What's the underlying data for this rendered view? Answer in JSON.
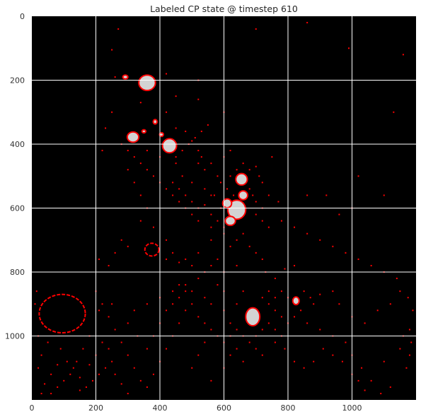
{
  "chart_data": {
    "type": "heatmap",
    "title": "Labeled CP state @ timestep 610",
    "xlabel": "",
    "ylabel": "",
    "xlim": [
      0,
      1200
    ],
    "ylim": [
      1200,
      0
    ],
    "x_ticks": [
      0,
      200,
      400,
      600,
      800,
      1000
    ],
    "y_ticks": [
      0,
      200,
      400,
      600,
      800,
      1000
    ],
    "x_tick_labels": [
      "0",
      "200",
      "400",
      "600",
      "800",
      "1000"
    ],
    "y_tick_labels": [
      "0",
      "200",
      "400",
      "600",
      "800",
      "1000"
    ],
    "grid": true,
    "colors": {
      "background": "#000000",
      "cell_fill": "#d3d3d3",
      "cell_outline": "#ff0000",
      "scatter": "#ff0000",
      "grid": "#ffffff"
    },
    "blobs": [
      {
        "x": 360,
        "y": 208,
        "rx": 26,
        "ry": 24
      },
      {
        "x": 292,
        "y": 190,
        "rx": 8,
        "ry": 6
      },
      {
        "x": 316,
        "y": 378,
        "rx": 18,
        "ry": 16
      },
      {
        "x": 350,
        "y": 360,
        "rx": 6,
        "ry": 5
      },
      {
        "x": 385,
        "y": 330,
        "rx": 6,
        "ry": 7
      },
      {
        "x": 405,
        "y": 370,
        "rx": 6,
        "ry": 6
      },
      {
        "x": 430,
        "y": 405,
        "rx": 22,
        "ry": 22
      },
      {
        "x": 655,
        "y": 510,
        "rx": 18,
        "ry": 18
      },
      {
        "x": 660,
        "y": 560,
        "rx": 14,
        "ry": 14
      },
      {
        "x": 640,
        "y": 605,
        "rx": 28,
        "ry": 30
      },
      {
        "x": 610,
        "y": 585,
        "rx": 14,
        "ry": 14
      },
      {
        "x": 620,
        "y": 640,
        "rx": 16,
        "ry": 14
      },
      {
        "x": 690,
        "y": 940,
        "rx": 22,
        "ry": 28
      },
      {
        "x": 825,
        "y": 890,
        "rx": 10,
        "ry": 12
      }
    ],
    "rings": [
      {
        "x": 95,
        "y": 930,
        "rx": 72,
        "ry": 60
      },
      {
        "x": 375,
        "y": 730,
        "rx": 22,
        "ry": 20
      }
    ],
    "scatter_points": [
      [
        260,
        190
      ],
      [
        250,
        105
      ],
      [
        270,
        40
      ],
      [
        340,
        270
      ],
      [
        420,
        300
      ],
      [
        450,
        350
      ],
      [
        480,
        360
      ],
      [
        500,
        390
      ],
      [
        520,
        420
      ],
      [
        530,
        440
      ],
      [
        520,
        460
      ],
      [
        540,
        480
      ],
      [
        560,
        460
      ],
      [
        580,
        500
      ],
      [
        590,
        520
      ],
      [
        520,
        260
      ],
      [
        600,
        440
      ],
      [
        620,
        420
      ],
      [
        640,
        480
      ],
      [
        700,
        470
      ],
      [
        710,
        500
      ],
      [
        720,
        520
      ],
      [
        690,
        560
      ],
      [
        700,
        620
      ],
      [
        720,
        640
      ],
      [
        770,
        580
      ],
      [
        750,
        440
      ],
      [
        860,
        560
      ],
      [
        920,
        560
      ],
      [
        960,
        620
      ],
      [
        1000,
        600
      ],
      [
        1020,
        500
      ],
      [
        1100,
        560
      ],
      [
        1130,
        300
      ],
      [
        1160,
        120
      ],
      [
        990,
        100
      ],
      [
        860,
        20
      ],
      [
        700,
        40
      ],
      [
        730,
        800
      ],
      [
        760,
        820
      ],
      [
        820,
        780
      ],
      [
        790,
        790
      ],
      [
        620,
        720
      ],
      [
        560,
        700
      ],
      [
        520,
        740
      ],
      [
        480,
        760
      ],
      [
        440,
        740
      ],
      [
        420,
        700
      ],
      [
        380,
        660
      ],
      [
        340,
        640
      ],
      [
        420,
        760
      ],
      [
        460,
        770
      ],
      [
        500,
        780
      ],
      [
        540,
        800
      ],
      [
        580,
        760
      ],
      [
        300,
        720
      ],
      [
        280,
        700
      ],
      [
        260,
        740
      ],
      [
        240,
        780
      ],
      [
        210,
        760
      ],
      [
        460,
        840
      ],
      [
        500,
        860
      ],
      [
        540,
        880
      ],
      [
        560,
        900
      ],
      [
        600,
        920
      ],
      [
        620,
        960
      ],
      [
        640,
        980
      ],
      [
        660,
        1000
      ],
      [
        540,
        1020
      ],
      [
        520,
        1060
      ],
      [
        500,
        1100
      ],
      [
        560,
        1140
      ],
      [
        600,
        1100
      ],
      [
        620,
        1060
      ],
      [
        660,
        1080
      ],
      [
        700,
        1040
      ],
      [
        720,
        1060
      ],
      [
        760,
        1020
      ],
      [
        780,
        1000
      ],
      [
        800,
        960
      ],
      [
        860,
        960
      ],
      [
        900,
        980
      ],
      [
        940,
        1000
      ],
      [
        980,
        1020
      ],
      [
        1000,
        1060
      ],
      [
        1030,
        1100
      ],
      [
        1060,
        1140
      ],
      [
        1100,
        1080
      ],
      [
        1150,
        1040
      ],
      [
        1180,
        980
      ],
      [
        1185,
        1020
      ],
      [
        1180,
        1060
      ],
      [
        1190,
        920
      ],
      [
        1175,
        880
      ],
      [
        1160,
        1000
      ],
      [
        1170,
        1100
      ],
      [
        1120,
        1160
      ],
      [
        1090,
        1180
      ],
      [
        1040,
        1170
      ],
      [
        200,
        860
      ],
      [
        220,
        900
      ],
      [
        240,
        940
      ],
      [
        260,
        980
      ],
      [
        280,
        1020
      ],
      [
        300,
        1060
      ],
      [
        320,
        1100
      ],
      [
        340,
        1140
      ],
      [
        360,
        1160
      ],
      [
        380,
        1120
      ],
      [
        400,
        1080
      ],
      [
        420,
        1040
      ],
      [
        440,
        1000
      ],
      [
        460,
        960
      ],
      [
        480,
        920
      ],
      [
        180,
        1000
      ],
      [
        160,
        1040
      ],
      [
        140,
        1080
      ],
      [
        120,
        1120
      ],
      [
        100,
        1140
      ],
      [
        80,
        1160
      ],
      [
        60,
        1180
      ],
      [
        40,
        1150
      ],
      [
        20,
        1100
      ],
      [
        30,
        1060
      ],
      [
        50,
        1020
      ],
      [
        90,
        1040
      ],
      [
        110,
        1080
      ],
      [
        130,
        1100
      ],
      [
        150,
        1130
      ],
      [
        170,
        1160
      ],
      [
        190,
        1140
      ],
      [
        210,
        1120
      ],
      [
        230,
        1100
      ],
      [
        250,
        1080
      ],
      [
        240,
        1040
      ],
      [
        220,
        1020
      ],
      [
        200,
        1060
      ],
      [
        180,
        1090
      ],
      [
        260,
        1120
      ],
      [
        280,
        1150
      ],
      [
        300,
        1180
      ],
      [
        150,
        1170
      ],
      [
        60,
        1120
      ],
      [
        80,
        1090
      ],
      [
        20,
        1000
      ],
      [
        10,
        900
      ],
      [
        15,
        860
      ],
      [
        30,
        1180
      ],
      [
        210,
        920
      ],
      [
        250,
        900
      ],
      [
        580,
        840
      ],
      [
        600,
        860
      ],
      [
        640,
        900
      ],
      [
        660,
        860
      ],
      [
        720,
        880
      ],
      [
        740,
        900
      ],
      [
        760,
        920
      ],
      [
        780,
        940
      ],
      [
        820,
        940
      ],
      [
        840,
        920
      ],
      [
        880,
        900
      ],
      [
        900,
        870
      ],
      [
        940,
        860
      ],
      [
        960,
        900
      ],
      [
        1000,
        940
      ],
      [
        1040,
        960
      ],
      [
        1080,
        920
      ],
      [
        1120,
        900
      ],
      [
        1150,
        860
      ],
      [
        1140,
        820
      ],
      [
        1100,
        800
      ],
      [
        1060,
        780
      ],
      [
        1020,
        760
      ],
      [
        980,
        740
      ],
      [
        940,
        720
      ],
      [
        900,
        700
      ],
      [
        860,
        680
      ],
      [
        820,
        660
      ],
      [
        780,
        640
      ],
      [
        740,
        660
      ],
      [
        660,
        680
      ],
      [
        640,
        700
      ],
      [
        600,
        680
      ],
      [
        560,
        660
      ],
      [
        520,
        640
      ],
      [
        500,
        620
      ],
      [
        480,
        600
      ],
      [
        460,
        580
      ],
      [
        440,
        560
      ],
      [
        420,
        540
      ],
      [
        400,
        520
      ],
      [
        380,
        500
      ],
      [
        360,
        480
      ],
      [
        340,
        460
      ],
      [
        320,
        440
      ],
      [
        300,
        420
      ],
      [
        280,
        400
      ],
      [
        360,
        420
      ],
      [
        400,
        440
      ],
      [
        450,
        460
      ],
      [
        470,
        500
      ],
      [
        500,
        520
      ],
      [
        540,
        540
      ],
      [
        570,
        560
      ],
      [
        590,
        600
      ],
      [
        560,
        620
      ],
      [
        580,
        640
      ],
      [
        600,
        660
      ],
      [
        680,
        540
      ],
      [
        700,
        580
      ],
      [
        720,
        600
      ],
      [
        740,
        560
      ],
      [
        680,
        480
      ],
      [
        660,
        460
      ],
      [
        620,
        500
      ],
      [
        610,
        540
      ],
      [
        630,
        560
      ],
      [
        680,
        720
      ],
      [
        700,
        740
      ],
      [
        720,
        760
      ],
      [
        640,
        780
      ],
      [
        600,
        800
      ],
      [
        560,
        780
      ],
      [
        520,
        820
      ],
      [
        480,
        840
      ],
      [
        440,
        860
      ],
      [
        400,
        880
      ],
      [
        360,
        900
      ],
      [
        320,
        920
      ],
      [
        300,
        960
      ],
      [
        330,
        1000
      ],
      [
        360,
        1040
      ],
      [
        380,
        1000
      ],
      [
        400,
        960
      ],
      [
        420,
        920
      ],
      [
        440,
        900
      ],
      [
        460,
        880
      ],
      [
        480,
        860
      ],
      [
        500,
        900
      ],
      [
        520,
        940
      ],
      [
        540,
        960
      ],
      [
        560,
        980
      ],
      [
        580,
        1000
      ],
      [
        600,
        1020
      ],
      [
        620,
        1000
      ],
      [
        640,
        1040
      ],
      [
        680,
        1020
      ],
      [
        700,
        1000
      ],
      [
        720,
        980
      ],
      [
        740,
        960
      ],
      [
        760,
        980
      ],
      [
        790,
        1040
      ],
      [
        820,
        1080
      ],
      [
        850,
        1100
      ],
      [
        880,
        1080
      ],
      [
        910,
        1040
      ],
      [
        940,
        1060
      ],
      [
        970,
        1080
      ],
      [
        1000,
        1120
      ],
      [
        1020,
        1140
      ],
      [
        870,
        880
      ],
      [
        850,
        860
      ],
      [
        800,
        880
      ],
      [
        780,
        860
      ],
      [
        760,
        880
      ],
      [
        740,
        860
      ],
      [
        560,
        560
      ],
      [
        540,
        590
      ],
      [
        520,
        600
      ],
      [
        500,
        580
      ],
      [
        480,
        560
      ],
      [
        460,
        540
      ],
      [
        440,
        520
      ],
      [
        450,
        440
      ],
      [
        470,
        420
      ],
      [
        490,
        400
      ],
      [
        510,
        380
      ],
      [
        530,
        360
      ],
      [
        550,
        340
      ],
      [
        600,
        300
      ],
      [
        450,
        250
      ],
      [
        520,
        200
      ],
      [
        420,
        180
      ],
      [
        250,
        300
      ],
      [
        230,
        350
      ],
      [
        220,
        420
      ],
      [
        300,
        480
      ],
      [
        320,
        520
      ],
      [
        340,
        560
      ],
      [
        360,
        600
      ]
    ]
  }
}
